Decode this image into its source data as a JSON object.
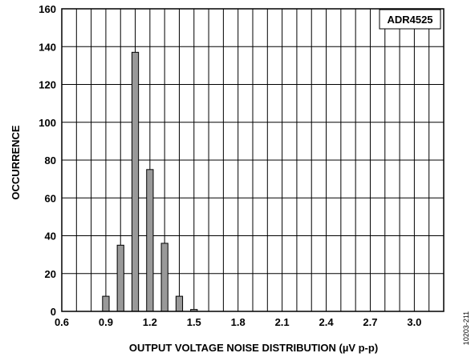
{
  "chart_data": {
    "type": "bar",
    "x": [
      0.9,
      1.0,
      1.1,
      1.2,
      1.3,
      1.4,
      1.5
    ],
    "values": [
      8,
      35,
      137,
      75,
      36,
      8,
      1
    ],
    "bar_color": "#999999",
    "xlabel": "OUTPUT VOLTAGE NOISE DISTRIBUTION (µV p-p)",
    "ylabel": "OCCURRENCE",
    "xlim": [
      0.6,
      3.2
    ],
    "ylim": [
      0,
      160
    ],
    "x_ticks": [
      "0.6",
      "0.9",
      "1.2",
      "1.5",
      "1.8",
      "2.1",
      "2.4",
      "2.7",
      "3.0"
    ],
    "y_ticks": [
      "0",
      "20",
      "40",
      "60",
      "80",
      "100",
      "120",
      "140",
      "160"
    ],
    "x_grid_step": 0.1,
    "y_grid_step": 20,
    "grid": true,
    "annotation": "ADR4525",
    "annotation_position": "top-right"
  },
  "figure_code": "10203-211"
}
